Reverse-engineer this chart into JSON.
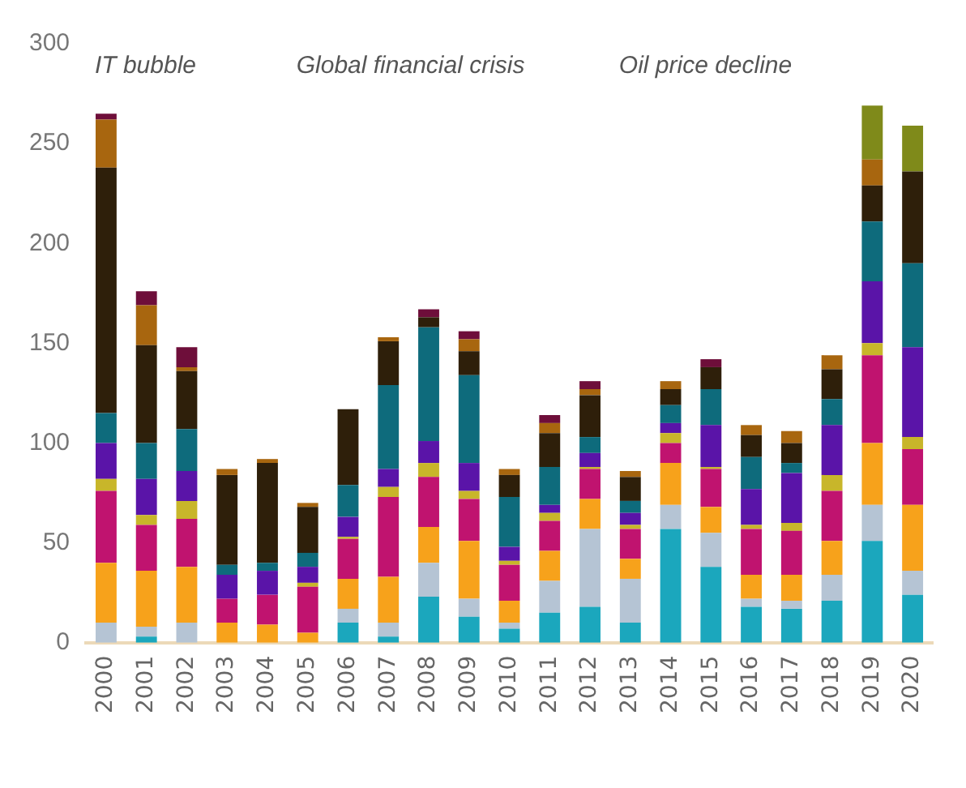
{
  "chart_data": {
    "type": "bar",
    "stacked": true,
    "categories": [
      "2000",
      "2001",
      "2002",
      "2003",
      "2004",
      "2005",
      "2006",
      "2007",
      "2008",
      "2009",
      "2010",
      "2011",
      "2012",
      "2013",
      "2014",
      "2015",
      "2016",
      "2017",
      "2018",
      "2019",
      "2020"
    ],
    "series": [
      {
        "color": "#1ba7bd",
        "values": [
          0,
          3,
          0,
          0,
          0,
          0,
          10,
          3,
          23,
          13,
          7,
          15,
          18,
          10,
          57,
          38,
          18,
          17,
          21,
          51,
          24
        ]
      },
      {
        "color": "#b5c4d4",
        "values": [
          10,
          5,
          10,
          0,
          0,
          0,
          7,
          7,
          17,
          9,
          3,
          16,
          39,
          22,
          12,
          17,
          4,
          4,
          13,
          18,
          12
        ]
      },
      {
        "color": "#f7a21b",
        "values": [
          30,
          28,
          28,
          10,
          9,
          5,
          15,
          23,
          18,
          29,
          11,
          15,
          15,
          10,
          21,
          13,
          12,
          13,
          17,
          31,
          33
        ]
      },
      {
        "color": "#c0136f",
        "values": [
          36,
          23,
          24,
          12,
          15,
          23,
          20,
          40,
          25,
          21,
          18,
          15,
          15,
          15,
          10,
          19,
          23,
          22,
          25,
          44,
          28
        ]
      },
      {
        "color": "#c8b62a",
        "values": [
          6,
          5,
          9,
          0,
          0,
          2,
          1,
          5,
          7,
          4,
          2,
          4,
          1,
          2,
          5,
          1,
          2,
          4,
          8,
          6,
          6
        ]
      },
      {
        "color": "#5a14a8",
        "values": [
          18,
          18,
          15,
          12,
          12,
          8,
          10,
          9,
          11,
          14,
          7,
          4,
          7,
          6,
          5,
          21,
          18,
          25,
          25,
          31,
          45
        ]
      },
      {
        "color": "#0e6b7c",
        "values": [
          15,
          18,
          21,
          5,
          4,
          7,
          16,
          42,
          57,
          44,
          25,
          19,
          8,
          6,
          9,
          18,
          16,
          5,
          13,
          30,
          42
        ]
      },
      {
        "color": "#2e1f0a",
        "values": [
          123,
          49,
          29,
          45,
          50,
          23,
          38,
          22,
          5,
          12,
          11,
          17,
          21,
          12,
          8,
          11,
          11,
          10,
          15,
          18,
          46
        ]
      },
      {
        "color": "#a8660f",
        "values": [
          24,
          20,
          2,
          3,
          2,
          2,
          0,
          2,
          0,
          6,
          3,
          5,
          3,
          3,
          4,
          0,
          5,
          6,
          7,
          13,
          0
        ]
      },
      {
        "color": "#6e0e3a",
        "values": [
          3,
          7,
          10,
          0,
          0,
          0,
          0,
          0,
          4,
          4,
          0,
          4,
          4,
          0,
          0,
          4,
          0,
          0,
          0,
          0,
          0
        ]
      },
      {
        "color": "#7f8a1a",
        "values": [
          0,
          0,
          0,
          0,
          0,
          0,
          0,
          0,
          0,
          0,
          0,
          0,
          0,
          0,
          0,
          0,
          0,
          0,
          0,
          27,
          23
        ]
      }
    ],
    "ylim": [
      0,
      300
    ],
    "yticks": [
      0,
      50,
      100,
      150,
      200,
      250,
      300
    ],
    "grid": false,
    "legend": false,
    "annotations": [
      "IT bubble",
      "Global financial crisis",
      "Oil price decline"
    ]
  }
}
